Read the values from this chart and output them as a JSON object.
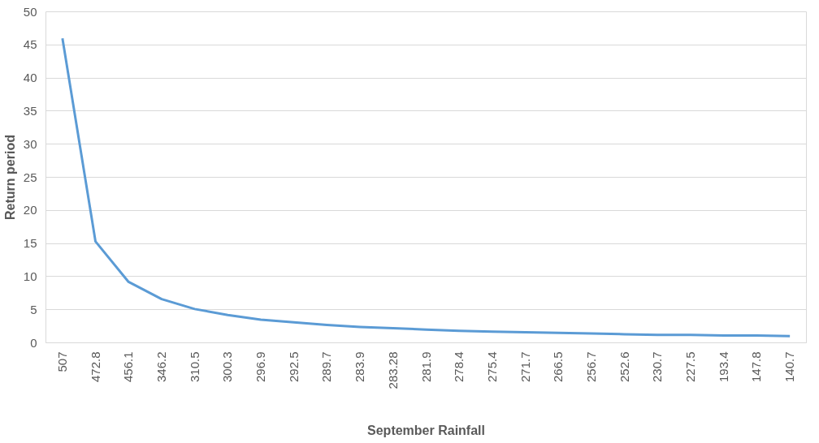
{
  "chart_data": {
    "type": "line",
    "xlabel": "September Rainfall",
    "ylabel": "Return period",
    "categories": [
      "507",
      "472.8",
      "456.1",
      "346.2",
      "310.5",
      "300.3",
      "296.9",
      "292.5",
      "289.7",
      "283.9",
      "283.28",
      "281.9",
      "278.4",
      "275.4",
      "271.7",
      "266.5",
      "256.7",
      "252.6",
      "230.7",
      "227.5",
      "193.4",
      "147.8",
      "140.7"
    ],
    "series": [
      {
        "color": "#5b9bd5",
        "values": [
          46,
          15.3,
          9.2,
          6.6,
          5.1,
          4.2,
          3.5,
          3.1,
          2.7,
          2.4,
          2.2,
          2.0,
          1.8,
          1.7,
          1.6,
          1.5,
          1.4,
          1.3,
          1.2,
          1.2,
          1.1,
          1.1,
          1.0
        ]
      }
    ],
    "ylim": [
      0,
      50
    ],
    "yticks": [
      0,
      5,
      10,
      15,
      20,
      25,
      30,
      35,
      40,
      45,
      50
    ],
    "grid": "y"
  }
}
